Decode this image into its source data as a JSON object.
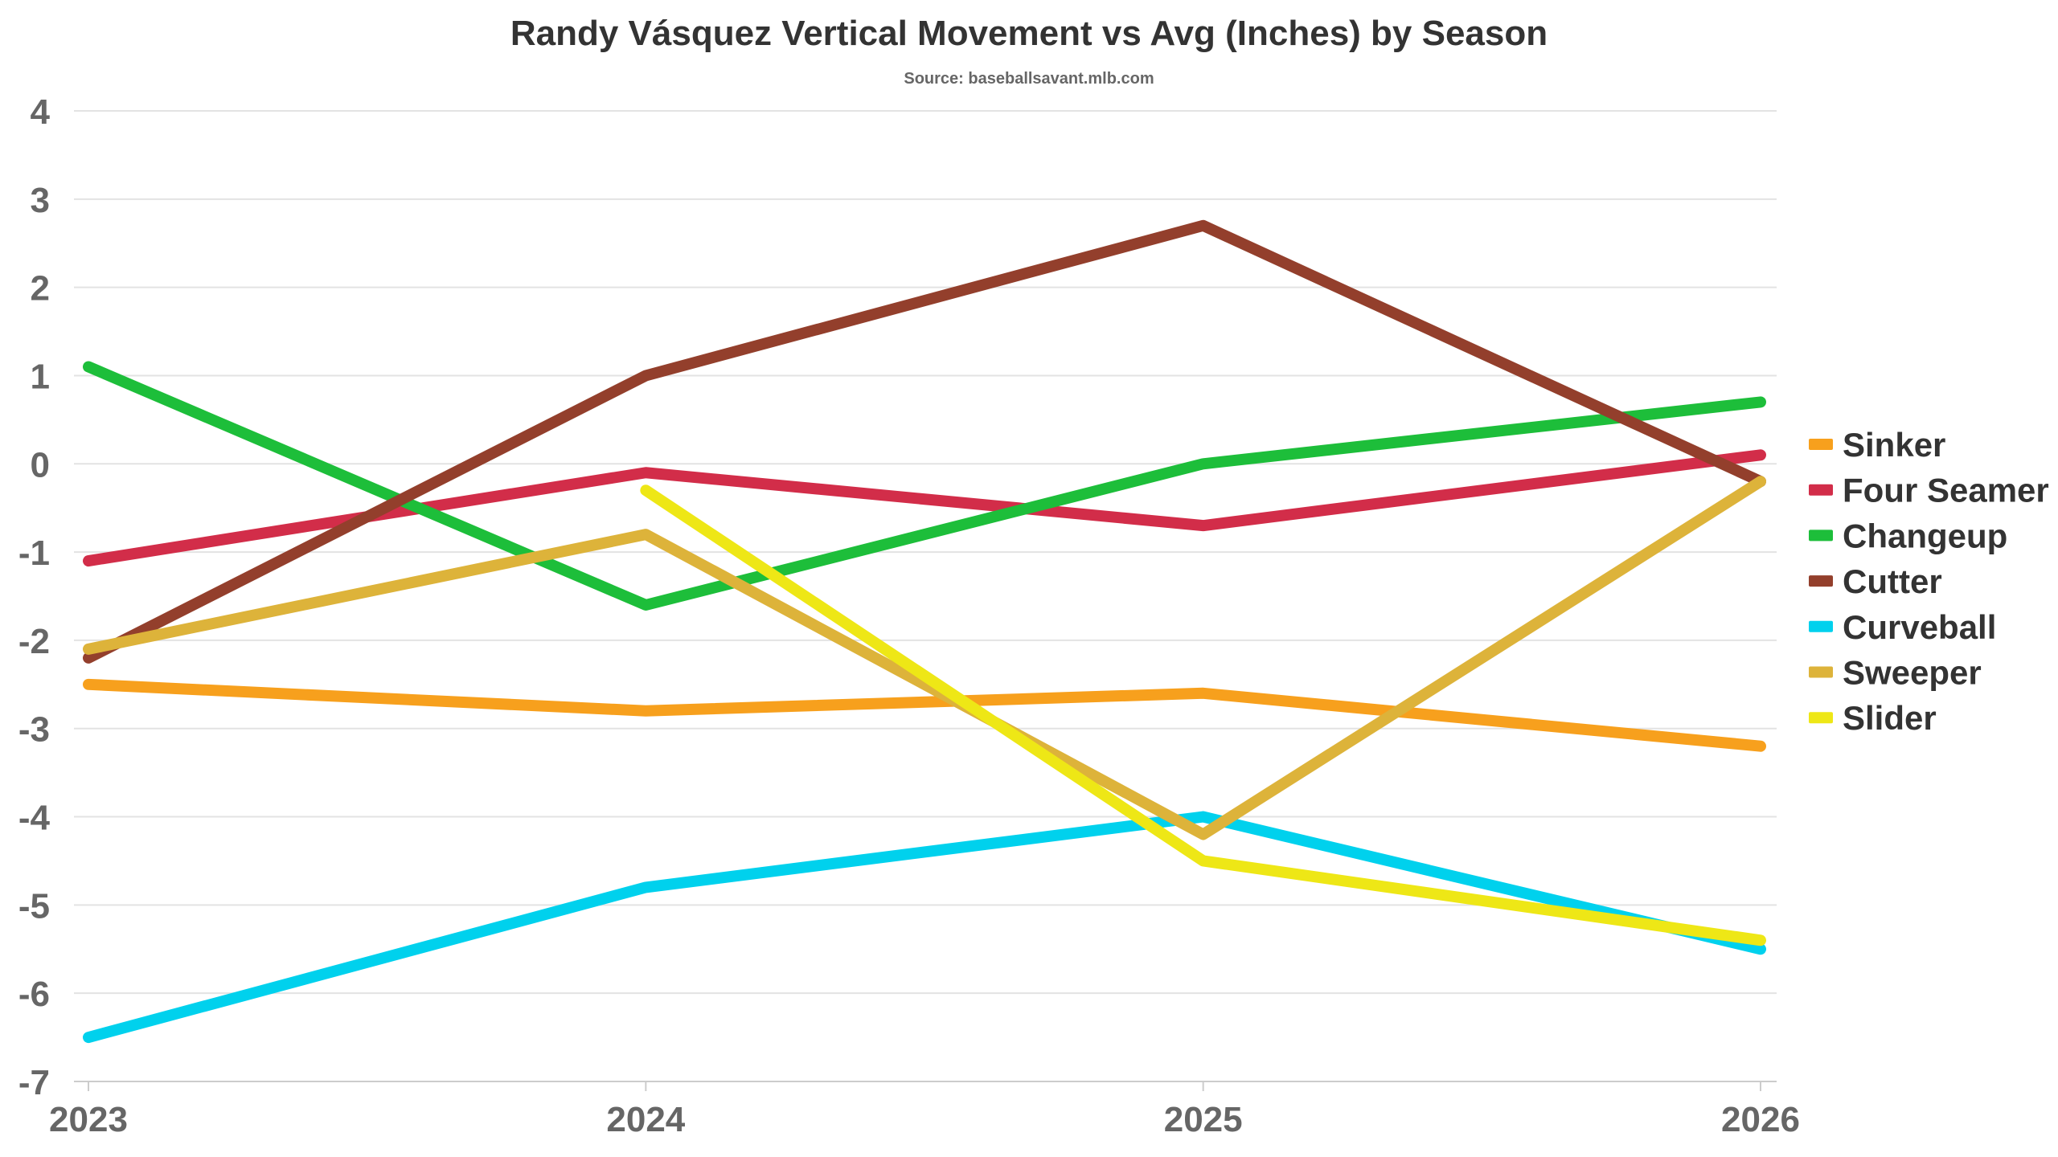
{
  "chart_data": {
    "type": "line",
    "title": "Randy Vásquez Vertical Movement vs Avg (Inches) by Season",
    "subtitle": "Source: baseballsavant.mlb.com",
    "xlabel": "",
    "ylabel": "",
    "x": [
      "2023",
      "2024",
      "2025",
      "2026"
    ],
    "ylim": [
      -7,
      4
    ],
    "yticks": [
      4,
      3,
      2,
      1,
      0,
      -1,
      -2,
      -3,
      -4,
      -5,
      -6,
      -7
    ],
    "grid": true,
    "legend_position": "right",
    "series": [
      {
        "name": "Sinker",
        "color": "#f7a01d",
        "values": [
          -2.5,
          -2.8,
          -2.6,
          -3.2
        ]
      },
      {
        "name": "Four Seamer",
        "color": "#d22d49",
        "values": [
          -1.1,
          -0.1,
          -0.7,
          0.1
        ]
      },
      {
        "name": "Changeup",
        "color": "#1dbe3a",
        "values": [
          1.1,
          -1.6,
          0.0,
          0.7
        ]
      },
      {
        "name": "Cutter",
        "color": "#933f2c",
        "values": [
          -2.2,
          1.0,
          2.7,
          -0.2
        ]
      },
      {
        "name": "Curveball",
        "color": "#00d1ed",
        "values": [
          -6.5,
          -4.8,
          -4.0,
          -5.5
        ]
      },
      {
        "name": "Sweeper",
        "color": "#ddb33a",
        "values": [
          -2.1,
          -0.8,
          -4.2,
          -0.2
        ]
      },
      {
        "name": "Slider",
        "color": "#eee716",
        "values": [
          null,
          -0.3,
          -4.5,
          -5.4
        ]
      }
    ]
  }
}
